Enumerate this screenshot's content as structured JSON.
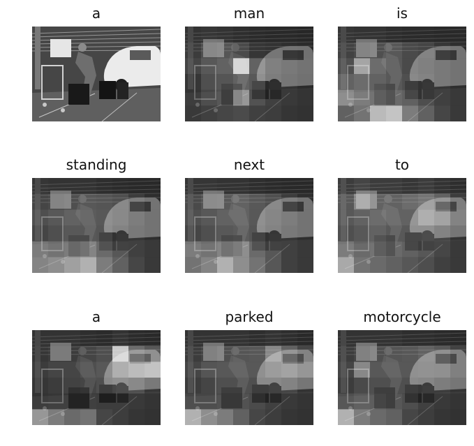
{
  "panels": [
    {
      "word": "a",
      "kind": "original",
      "weights": []
    },
    {
      "word": "man",
      "kind": "attention",
      "weights": [
        [
          0.1,
          0.12,
          0.1,
          0.08,
          0.06,
          0.05,
          0.05,
          0.04
        ],
        [
          0.15,
          0.25,
          0.28,
          0.22,
          0.12,
          0.1,
          0.08,
          0.06
        ],
        [
          0.2,
          0.3,
          0.35,
          0.95,
          0.35,
          0.18,
          0.12,
          0.08
        ],
        [
          0.12,
          0.25,
          0.28,
          0.35,
          0.3,
          0.15,
          0.1,
          0.06
        ],
        [
          0.1,
          0.2,
          0.25,
          0.6,
          0.22,
          0.12,
          0.08,
          0.05
        ],
        [
          0.08,
          0.12,
          0.15,
          0.18,
          0.12,
          0.1,
          0.06,
          0.04
        ]
      ]
    },
    {
      "word": "is",
      "kind": "attention",
      "weights": [
        [
          0.12,
          0.1,
          0.1,
          0.08,
          0.06,
          0.06,
          0.05,
          0.05
        ],
        [
          0.18,
          0.22,
          0.25,
          0.3,
          0.22,
          0.2,
          0.12,
          0.08
        ],
        [
          0.25,
          0.7,
          0.4,
          0.3,
          0.22,
          0.18,
          0.12,
          0.08
        ],
        [
          0.35,
          0.4,
          0.35,
          0.3,
          0.25,
          0.2,
          0.12,
          0.08
        ],
        [
          0.55,
          0.45,
          0.4,
          0.35,
          0.3,
          0.2,
          0.12,
          0.08
        ],
        [
          0.3,
          0.4,
          0.8,
          0.85,
          0.45,
          0.3,
          0.15,
          0.08
        ]
      ]
    },
    {
      "word": "standing",
      "kind": "attention",
      "weights": [
        [
          0.12,
          0.1,
          0.1,
          0.1,
          0.08,
          0.06,
          0.05,
          0.05
        ],
        [
          0.2,
          0.22,
          0.25,
          0.3,
          0.28,
          0.25,
          0.15,
          0.08
        ],
        [
          0.25,
          0.3,
          0.35,
          0.32,
          0.3,
          0.25,
          0.15,
          0.08
        ],
        [
          0.2,
          0.25,
          0.3,
          0.3,
          0.28,
          0.2,
          0.12,
          0.08
        ],
        [
          0.45,
          0.4,
          0.45,
          0.5,
          0.35,
          0.25,
          0.12,
          0.08
        ],
        [
          0.5,
          0.55,
          0.65,
          0.75,
          0.45,
          0.3,
          0.15,
          0.08
        ]
      ]
    },
    {
      "word": "next",
      "kind": "attention",
      "weights": [
        [
          0.12,
          0.12,
          0.1,
          0.1,
          0.08,
          0.06,
          0.05,
          0.05
        ],
        [
          0.22,
          0.28,
          0.3,
          0.35,
          0.3,
          0.25,
          0.15,
          0.08
        ],
        [
          0.25,
          0.3,
          0.35,
          0.35,
          0.3,
          0.22,
          0.15,
          0.08
        ],
        [
          0.2,
          0.25,
          0.3,
          0.32,
          0.28,
          0.2,
          0.12,
          0.08
        ],
        [
          0.45,
          0.4,
          0.5,
          0.55,
          0.35,
          0.25,
          0.12,
          0.08
        ],
        [
          0.4,
          0.5,
          0.75,
          0.55,
          0.4,
          0.25,
          0.12,
          0.08
        ]
      ]
    },
    {
      "word": "to",
      "kind": "attention",
      "weights": [
        [
          0.15,
          0.2,
          0.15,
          0.15,
          0.12,
          0.15,
          0.1,
          0.08
        ],
        [
          0.3,
          0.55,
          0.35,
          0.35,
          0.4,
          0.45,
          0.35,
          0.15
        ],
        [
          0.3,
          0.35,
          0.4,
          0.35,
          0.35,
          0.55,
          0.45,
          0.2
        ],
        [
          0.25,
          0.3,
          0.35,
          0.3,
          0.3,
          0.3,
          0.2,
          0.1
        ],
        [
          0.45,
          0.35,
          0.4,
          0.35,
          0.3,
          0.25,
          0.15,
          0.08
        ],
        [
          0.7,
          0.4,
          0.35,
          0.3,
          0.25,
          0.2,
          0.12,
          0.08
        ]
      ]
    },
    {
      "word": "a",
      "kind": "attention",
      "weights": [
        [
          0.1,
          0.1,
          0.1,
          0.08,
          0.06,
          0.1,
          0.06,
          0.05
        ],
        [
          0.12,
          0.15,
          0.15,
          0.2,
          0.25,
          0.9,
          0.4,
          0.3
        ],
        [
          0.15,
          0.2,
          0.2,
          0.25,
          0.3,
          0.55,
          0.65,
          0.7
        ],
        [
          0.12,
          0.15,
          0.18,
          0.2,
          0.25,
          0.3,
          0.25,
          0.12
        ],
        [
          0.1,
          0.12,
          0.12,
          0.12,
          0.1,
          0.1,
          0.08,
          0.05
        ],
        [
          0.6,
          0.45,
          0.35,
          0.4,
          0.15,
          0.1,
          0.06,
          0.04
        ]
      ]
    },
    {
      "word": "parked",
      "kind": "attention",
      "weights": [
        [
          0.1,
          0.1,
          0.1,
          0.1,
          0.08,
          0.1,
          0.08,
          0.05
        ],
        [
          0.15,
          0.2,
          0.25,
          0.28,
          0.3,
          0.55,
          0.35,
          0.2
        ],
        [
          0.2,
          0.28,
          0.3,
          0.3,
          0.3,
          0.4,
          0.45,
          0.35
        ],
        [
          0.15,
          0.2,
          0.25,
          0.25,
          0.25,
          0.25,
          0.2,
          0.1
        ],
        [
          0.2,
          0.2,
          0.22,
          0.22,
          0.18,
          0.12,
          0.08,
          0.05
        ],
        [
          0.75,
          0.55,
          0.45,
          0.3,
          0.15,
          0.1,
          0.06,
          0.04
        ]
      ]
    },
    {
      "word": "motorcycle",
      "kind": "attention",
      "weights": [
        [
          0.1,
          0.1,
          0.1,
          0.1,
          0.08,
          0.08,
          0.06,
          0.05
        ],
        [
          0.15,
          0.2,
          0.25,
          0.28,
          0.3,
          0.35,
          0.3,
          0.18
        ],
        [
          0.2,
          0.55,
          0.3,
          0.3,
          0.3,
          0.32,
          0.3,
          0.18
        ],
        [
          0.15,
          0.22,
          0.25,
          0.25,
          0.25,
          0.22,
          0.15,
          0.1
        ],
        [
          0.25,
          0.3,
          0.28,
          0.25,
          0.2,
          0.12,
          0.08,
          0.05
        ],
        [
          0.75,
          0.45,
          0.35,
          0.3,
          0.15,
          0.1,
          0.06,
          0.04
        ]
      ]
    }
  ]
}
